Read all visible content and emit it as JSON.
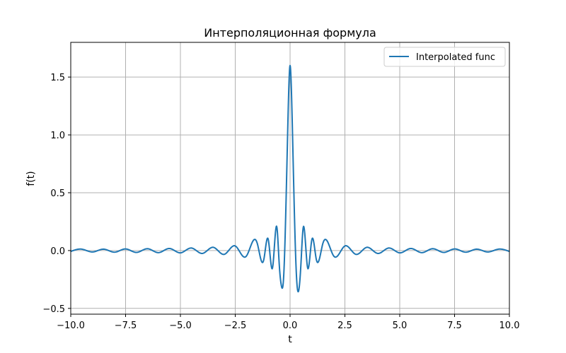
{
  "chart_data": {
    "type": "line",
    "title": "Интерполяционная формула",
    "xlabel": "t",
    "ylabel": "f(t)",
    "xlim": [
      -10.0,
      10.0
    ],
    "ylim": [
      -0.55,
      1.8
    ],
    "xticks": [
      -10.0,
      -7.5,
      -5.0,
      -2.5,
      0.0,
      2.5,
      5.0,
      7.5,
      10.0
    ],
    "xtick_labels": [
      "−10.0",
      "−7.5",
      "−5.0",
      "−2.5",
      "0.0",
      "2.5",
      "5.0",
      "7.5",
      "10.0"
    ],
    "yticks": [
      -0.5,
      0.0,
      0.5,
      1.0,
      1.5
    ],
    "ytick_labels": [
      "−0.5",
      "0.0",
      "0.5",
      "1.0",
      "1.5"
    ],
    "grid": true,
    "legend_position": "top-right",
    "series": [
      {
        "name": "Interpolated func",
        "color": "#1f77b4",
        "x": [
          -10.0,
          -9.5,
          -9.0,
          -8.5,
          -8.0,
          -7.5,
          -7.0,
          -6.5,
          -6.0,
          -5.5,
          -5.0,
          -4.5,
          -4.0,
          -3.5,
          -3.0,
          -2.5,
          -2.0,
          -1.5,
          -1.2,
          -1.0,
          -0.8,
          -0.6,
          -0.5,
          -0.4,
          -0.3,
          -0.2,
          -0.1,
          0.0,
          0.1,
          0.2,
          0.3,
          0.4,
          0.5,
          0.6,
          0.8,
          1.0,
          1.2,
          1.5,
          2.0,
          2.5,
          3.0,
          3.5,
          4.0,
          4.5,
          5.0,
          5.5,
          6.0,
          6.5,
          7.0,
          7.5,
          8.0,
          8.5,
          9.0,
          9.5,
          10.0
        ],
        "y": [
          -0.008,
          0.012,
          -0.012,
          0.012,
          -0.014,
          0.014,
          -0.016,
          0.016,
          -0.018,
          0.018,
          -0.02,
          0.022,
          -0.025,
          0.028,
          -0.033,
          0.04,
          -0.05,
          0.065,
          -0.08,
          0.1,
          -0.15,
          0.2,
          -0.1,
          -0.3,
          -0.25,
          0.3,
          1.1,
          1.6,
          1.1,
          0.3,
          -0.25,
          -0.34,
          -0.1,
          0.2,
          -0.15,
          0.1,
          -0.08,
          0.065,
          -0.05,
          0.04,
          -0.033,
          0.028,
          -0.025,
          0.022,
          -0.02,
          0.018,
          -0.018,
          0.016,
          -0.016,
          0.014,
          -0.014,
          0.012,
          -0.012,
          0.012,
          -0.008
        ]
      }
    ]
  }
}
